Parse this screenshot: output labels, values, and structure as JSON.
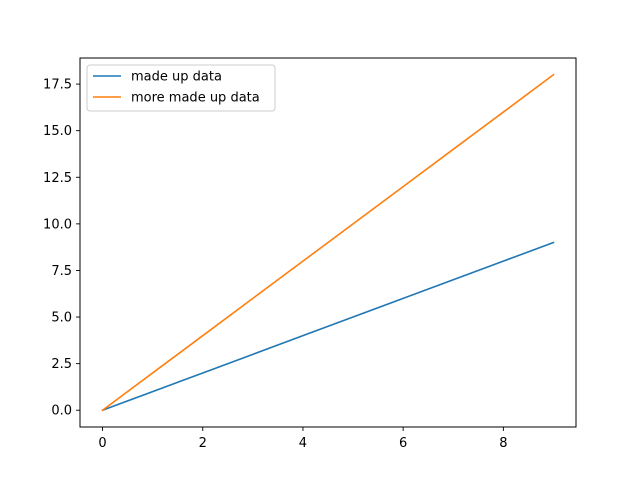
{
  "chart_data": {
    "type": "line",
    "title": "",
    "xlabel": "",
    "ylabel": "",
    "xlim": [
      -0.45,
      9.45
    ],
    "ylim": [
      -0.9,
      18.9
    ],
    "xticks": [
      0,
      2,
      4,
      6,
      8
    ],
    "xtick_labels": [
      "0",
      "2",
      "4",
      "6",
      "8"
    ],
    "yticks": [
      0,
      2.5,
      5,
      7.5,
      10,
      12.5,
      15,
      17.5
    ],
    "ytick_labels": [
      "0.0",
      "2.5",
      "5.0",
      "7.5",
      "10.0",
      "12.5",
      "15.0",
      "17.5"
    ],
    "grid": false,
    "legend_position": "top-left",
    "series": [
      {
        "name": "made up data",
        "color": "#1f77b4",
        "x": [
          0,
          1,
          2,
          3,
          4,
          5,
          6,
          7,
          8,
          9
        ],
        "y": [
          0,
          1,
          2,
          3,
          4,
          5,
          6,
          7,
          8,
          9
        ]
      },
      {
        "name": "more made up data",
        "color": "#ff7f0e",
        "x": [
          0,
          1,
          2,
          3,
          4,
          5,
          6,
          7,
          8,
          9
        ],
        "y": [
          0,
          2,
          4,
          6,
          8,
          10,
          12,
          14,
          16,
          18
        ]
      }
    ]
  }
}
